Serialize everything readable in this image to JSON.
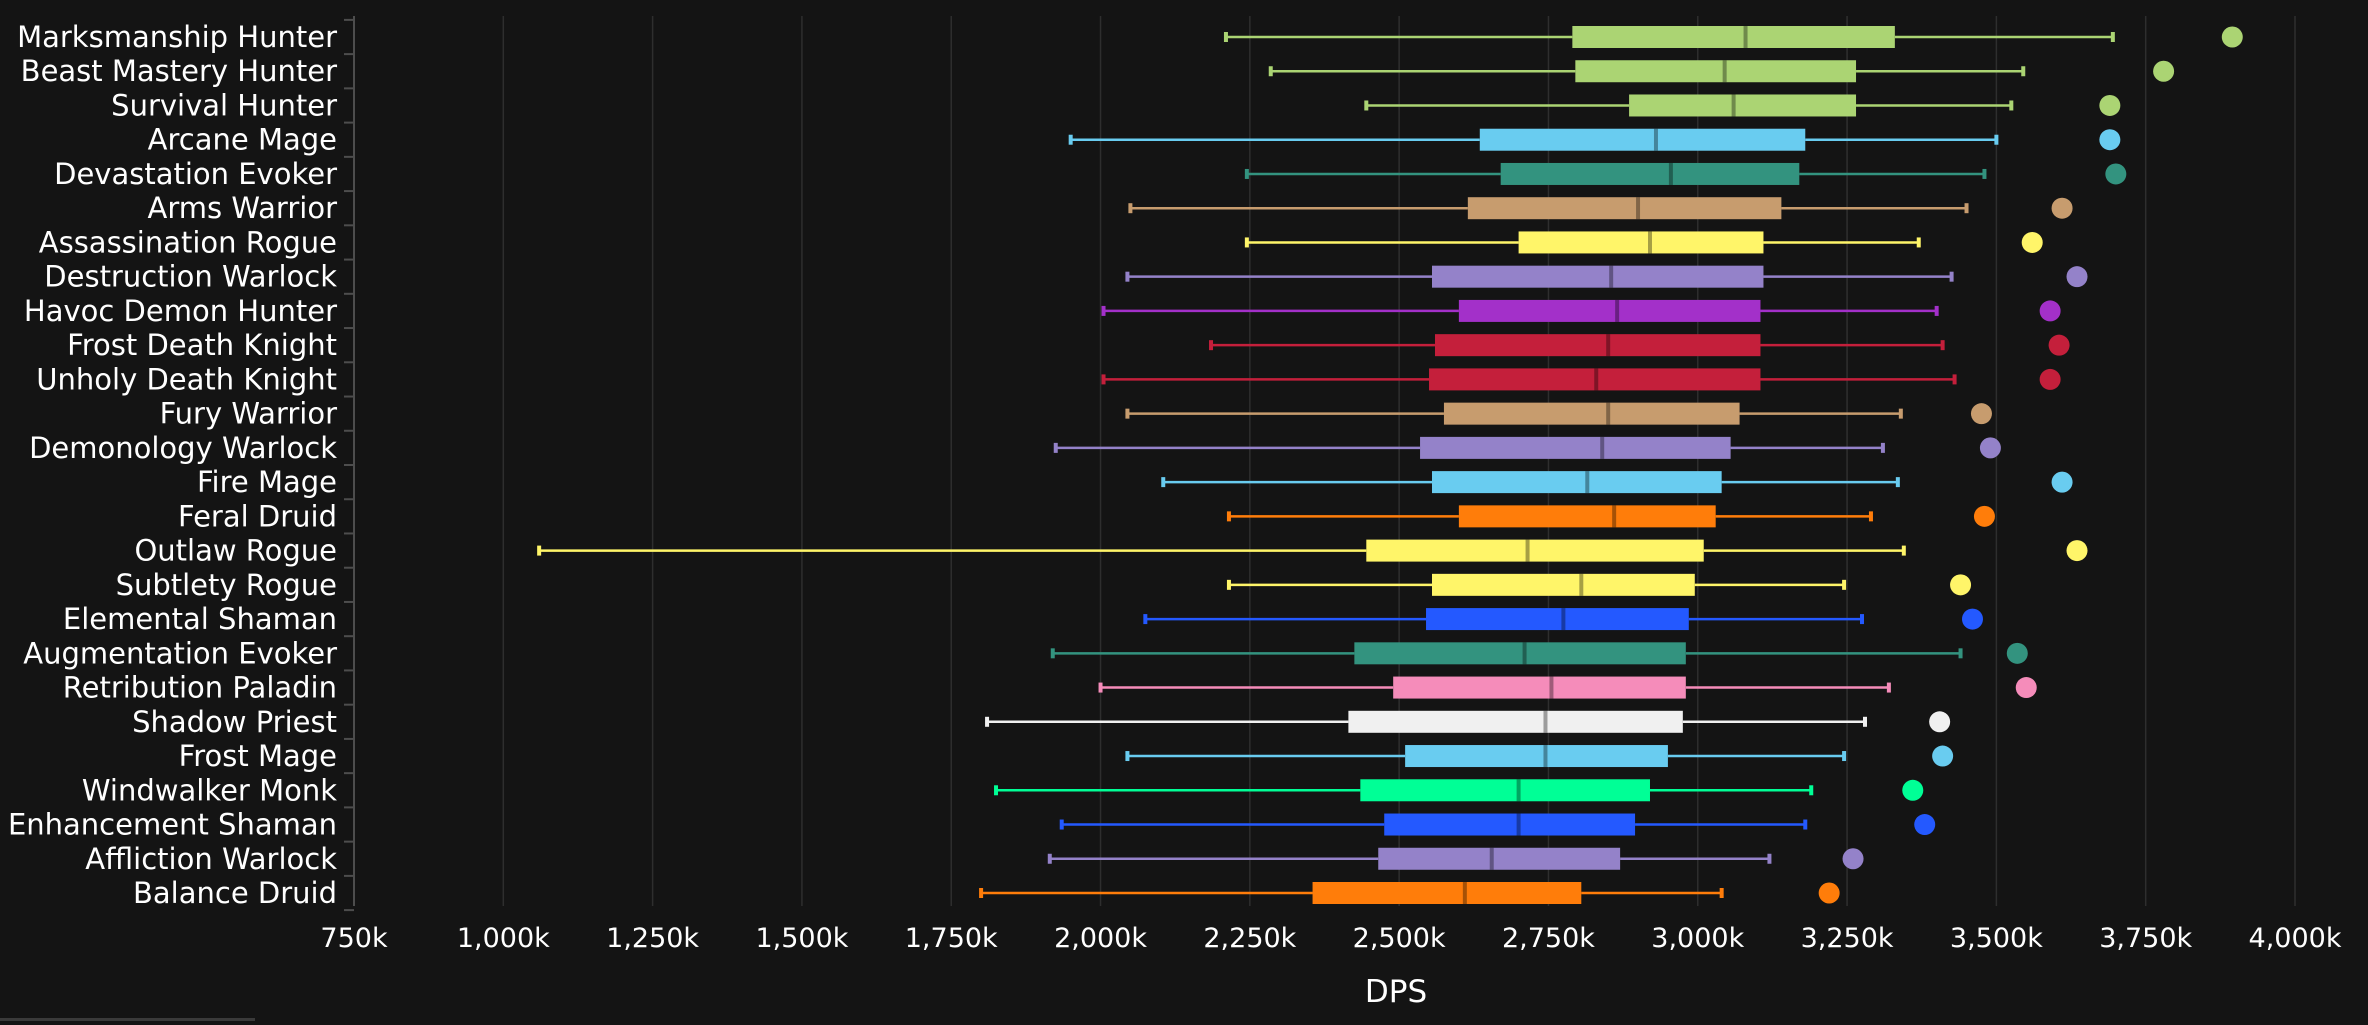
{
  "chart_data": {
    "type": "box",
    "xlabel": "DPS",
    "xlim": [
      750000,
      4000000
    ],
    "xticks": [
      750000,
      1000000,
      1250000,
      1500000,
      1750000,
      2000000,
      2250000,
      2500000,
      2750000,
      3000000,
      3250000,
      3500000,
      3750000,
      4000000
    ],
    "xtick_labels": [
      "750k",
      "1,000k",
      "1,250k",
      "1,500k",
      "1,750k",
      "2,000k",
      "2,250k",
      "2,500k",
      "2,750k",
      "3,000k",
      "3,250k",
      "3,500k",
      "3,750k",
      "4,000k"
    ],
    "grid": true,
    "orientation": "horizontal",
    "series": [
      {
        "name": "Marksmanship Hunter",
        "color": "#abd473",
        "min": 2210000,
        "q1": 2790000,
        "median": 3080000,
        "q3": 3330000,
        "max": 3695000,
        "outlier": 3895000
      },
      {
        "name": "Beast Mastery Hunter",
        "color": "#abd473",
        "min": 2285000,
        "q1": 2795000,
        "median": 3045000,
        "q3": 3265000,
        "max": 3545000,
        "outlier": 3780000
      },
      {
        "name": "Survival Hunter",
        "color": "#abd473",
        "min": 2445000,
        "q1": 2885000,
        "median": 3060000,
        "q3": 3265000,
        "max": 3525000,
        "outlier": 3690000
      },
      {
        "name": "Arcane Mage",
        "color": "#69ccf0",
        "min": 1950000,
        "q1": 2635000,
        "median": 2930000,
        "q3": 3180000,
        "max": 3500000,
        "outlier": 3690000
      },
      {
        "name": "Devastation Evoker",
        "color": "#33937f",
        "min": 2245000,
        "q1": 2670000,
        "median": 2955000,
        "q3": 3170000,
        "max": 3480000,
        "outlier": 3700000
      },
      {
        "name": "Arms Warrior",
        "color": "#c79c6e",
        "min": 2050000,
        "q1": 2615000,
        "median": 2900000,
        "q3": 3140000,
        "max": 3450000,
        "outlier": 3610000
      },
      {
        "name": "Assassination Rogue",
        "color": "#fff569",
        "min": 2245000,
        "q1": 2700000,
        "median": 2920000,
        "q3": 3110000,
        "max": 3370000,
        "outlier": 3560000
      },
      {
        "name": "Destruction Warlock",
        "color": "#9482c9",
        "min": 2045000,
        "q1": 2555000,
        "median": 2855000,
        "q3": 3110000,
        "max": 3425000,
        "outlier": 3635000
      },
      {
        "name": "Havoc Demon Hunter",
        "color": "#a330c9",
        "min": 2005000,
        "q1": 2600000,
        "median": 2865000,
        "q3": 3105000,
        "max": 3400000,
        "outlier": 3590000
      },
      {
        "name": "Frost Death Knight",
        "color": "#c41f3b",
        "min": 2185000,
        "q1": 2560000,
        "median": 2850000,
        "q3": 3105000,
        "max": 3410000,
        "outlier": 3605000
      },
      {
        "name": "Unholy Death Knight",
        "color": "#c41f3b",
        "min": 2005000,
        "q1": 2550000,
        "median": 2830000,
        "q3": 3105000,
        "max": 3430000,
        "outlier": 3590000
      },
      {
        "name": "Fury Warrior",
        "color": "#c79c6e",
        "min": 2045000,
        "q1": 2575000,
        "median": 2850000,
        "q3": 3070000,
        "max": 3340000,
        "outlier": 3475000
      },
      {
        "name": "Demonology Warlock",
        "color": "#9482c9",
        "min": 1925000,
        "q1": 2535000,
        "median": 2840000,
        "q3": 3055000,
        "max": 3310000,
        "outlier": 3490000
      },
      {
        "name": "Fire Mage",
        "color": "#69ccf0",
        "min": 2105000,
        "q1": 2555000,
        "median": 2815000,
        "q3": 3040000,
        "max": 3335000,
        "outlier": 3610000
      },
      {
        "name": "Feral Druid",
        "color": "#ff7d0a",
        "min": 2215000,
        "q1": 2600000,
        "median": 2860000,
        "q3": 3030000,
        "max": 3290000,
        "outlier": 3480000
      },
      {
        "name": "Outlaw Rogue",
        "color": "#fff569",
        "min": 1060000,
        "q1": 2445000,
        "median": 2715000,
        "q3": 3010000,
        "max": 3345000,
        "outlier": 3635000
      },
      {
        "name": "Subtlety Rogue",
        "color": "#fff569",
        "min": 2215000,
        "q1": 2555000,
        "median": 2805000,
        "q3": 2995000,
        "max": 3245000,
        "outlier": 3440000
      },
      {
        "name": "Elemental Shaman",
        "color": "#2459ff",
        "min": 2075000,
        "q1": 2545000,
        "median": 2775000,
        "q3": 2985000,
        "max": 3275000,
        "outlier": 3460000
      },
      {
        "name": "Augmentation Evoker",
        "color": "#33937f",
        "min": 1920000,
        "q1": 2425000,
        "median": 2710000,
        "q3": 2980000,
        "max": 3440000,
        "outlier": 3535000
      },
      {
        "name": "Retribution Paladin",
        "color": "#f58cba",
        "min": 2000000,
        "q1": 2490000,
        "median": 2755000,
        "q3": 2980000,
        "max": 3320000,
        "outlier": 3550000
      },
      {
        "name": "Shadow Priest",
        "color": "#f0f0f0",
        "min": 1810000,
        "q1": 2415000,
        "median": 2745000,
        "q3": 2975000,
        "max": 3280000,
        "outlier": 3405000
      },
      {
        "name": "Frost Mage",
        "color": "#69ccf0",
        "min": 2045000,
        "q1": 2510000,
        "median": 2745000,
        "q3": 2950000,
        "max": 3245000,
        "outlier": 3410000
      },
      {
        "name": "Windwalker Monk",
        "color": "#00ff96",
        "min": 1825000,
        "q1": 2435000,
        "median": 2700000,
        "q3": 2920000,
        "max": 3190000,
        "outlier": 3360000
      },
      {
        "name": "Enhancement Shaman",
        "color": "#2459ff",
        "min": 1935000,
        "q1": 2475000,
        "median": 2700000,
        "q3": 2895000,
        "max": 3180000,
        "outlier": 3380000
      },
      {
        "name": "Affliction Warlock",
        "color": "#9482c9",
        "min": 1915000,
        "q1": 2465000,
        "median": 2655000,
        "q3": 2870000,
        "max": 3120000,
        "outlier": 3260000
      },
      {
        "name": "Balance Druid",
        "color": "#ff7d0a",
        "min": 1800000,
        "q1": 2355000,
        "median": 2610000,
        "q3": 2805000,
        "max": 3040000,
        "outlier": 3220000
      }
    ]
  },
  "colors": {
    "background": "#141414",
    "grid": "#2e2e2e",
    "axis": "#4d4d4d",
    "text": "#ffffff"
  }
}
